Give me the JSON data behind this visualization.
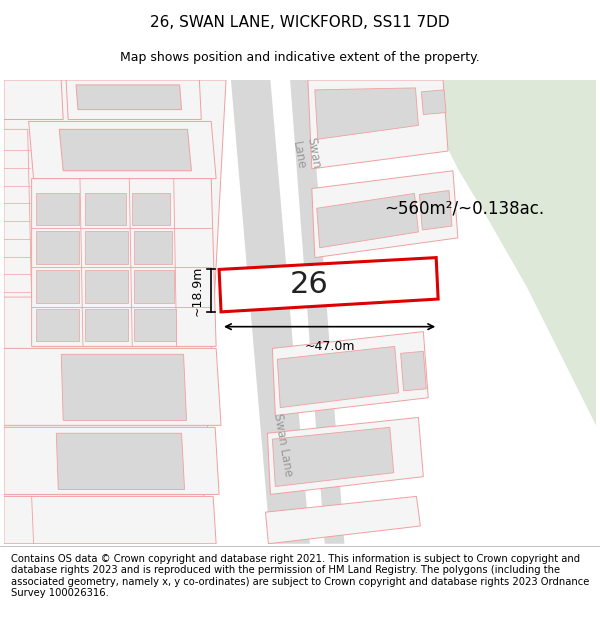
{
  "title": "26, SWAN LANE, WICKFORD, SS11 7DD",
  "subtitle": "Map shows position and indicative extent of the property.",
  "footer": "Contains OS data © Crown copyright and database right 2021. This information is subject to Crown copyright and database rights 2023 and is reproduced with the permission of HM Land Registry. The polygons (including the associated geometry, namely x, y co-ordinates) are subject to Crown copyright and database rights 2023 Ordnance Survey 100026316.",
  "area_text": "~560m²/~0.138ac.",
  "label_number": "26",
  "width_label": "~47.0m",
  "height_label": "~18.9m",
  "bg_color": "#ffffff",
  "map_bg": "#ffffff",
  "green_area_color": "#dde8d8",
  "road_color": "#d8d8d8",
  "plot_outline_color": "#dd0000",
  "plot_fill_color": "#ffffff",
  "parcel_outline": "#f0a0a0",
  "parcel_fill": "#f5f5f5",
  "building_fill": "#d8d8d8",
  "title_fontsize": 11,
  "subtitle_fontsize": 9,
  "footer_fontsize": 7.2
}
